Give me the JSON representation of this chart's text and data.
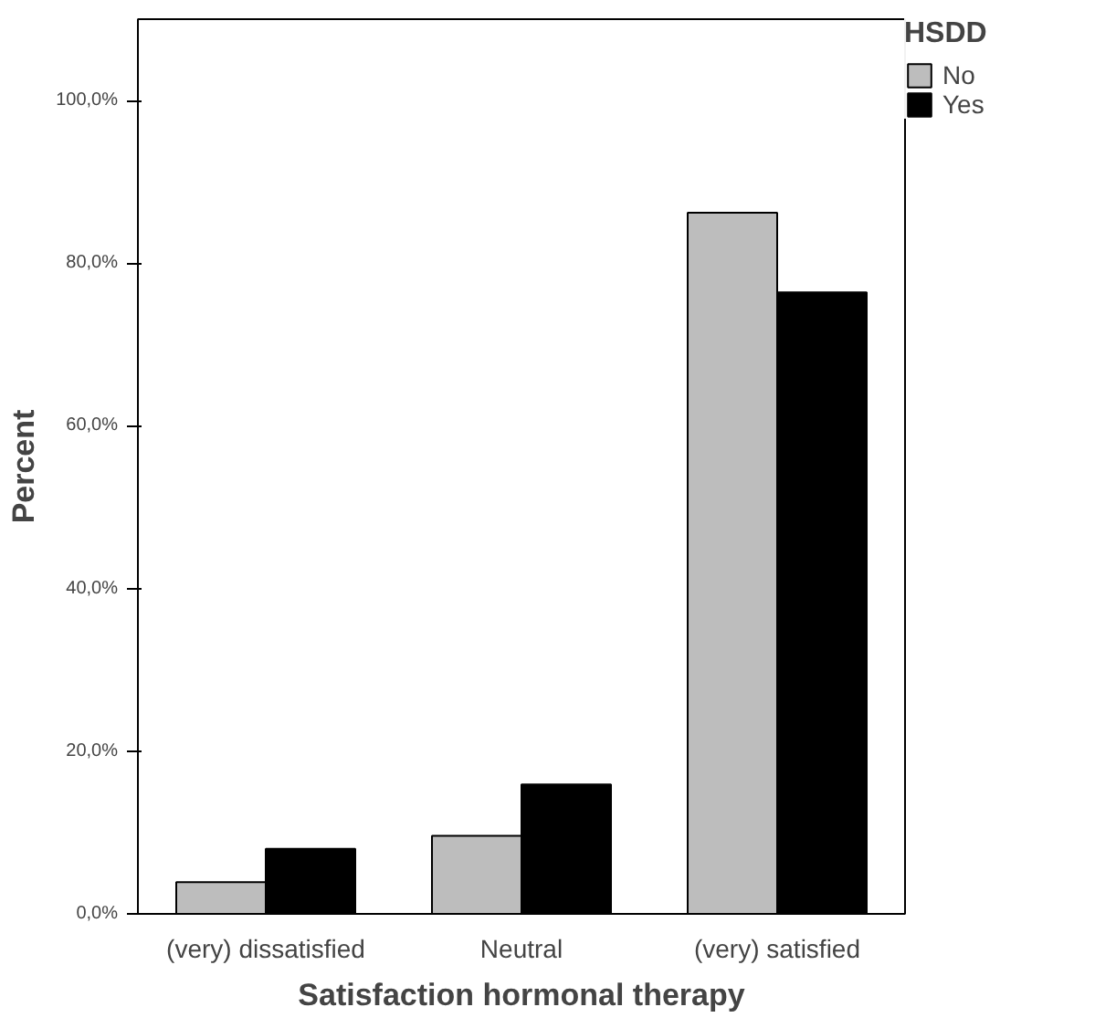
{
  "chart_data": {
    "type": "bar",
    "xlabel": "Satisfaction hormonal therapy",
    "ylabel": "Percent",
    "legend_title": "HSDD",
    "categories": [
      "(very) dissatisfied",
      "Neutral",
      "(very) satisfied"
    ],
    "series": [
      {
        "name": "No",
        "color": "#bdbdbd",
        "values": [
          3.9,
          9.6,
          86.2
        ]
      },
      {
        "name": "Yes",
        "color": "#000000",
        "values": [
          8.0,
          15.9,
          76.4
        ]
      }
    ],
    "ylim": [
      0,
      110
    ],
    "yticks": [
      {
        "value": 0,
        "label": "0,0%"
      },
      {
        "value": 20,
        "label": "20,0%"
      },
      {
        "value": 40,
        "label": "40,0%"
      },
      {
        "value": 60,
        "label": "60,0%"
      },
      {
        "value": 80,
        "label": "80,0%"
      },
      {
        "value": 100,
        "label": "100,0%"
      }
    ],
    "grid": false,
    "legend": "top right"
  }
}
